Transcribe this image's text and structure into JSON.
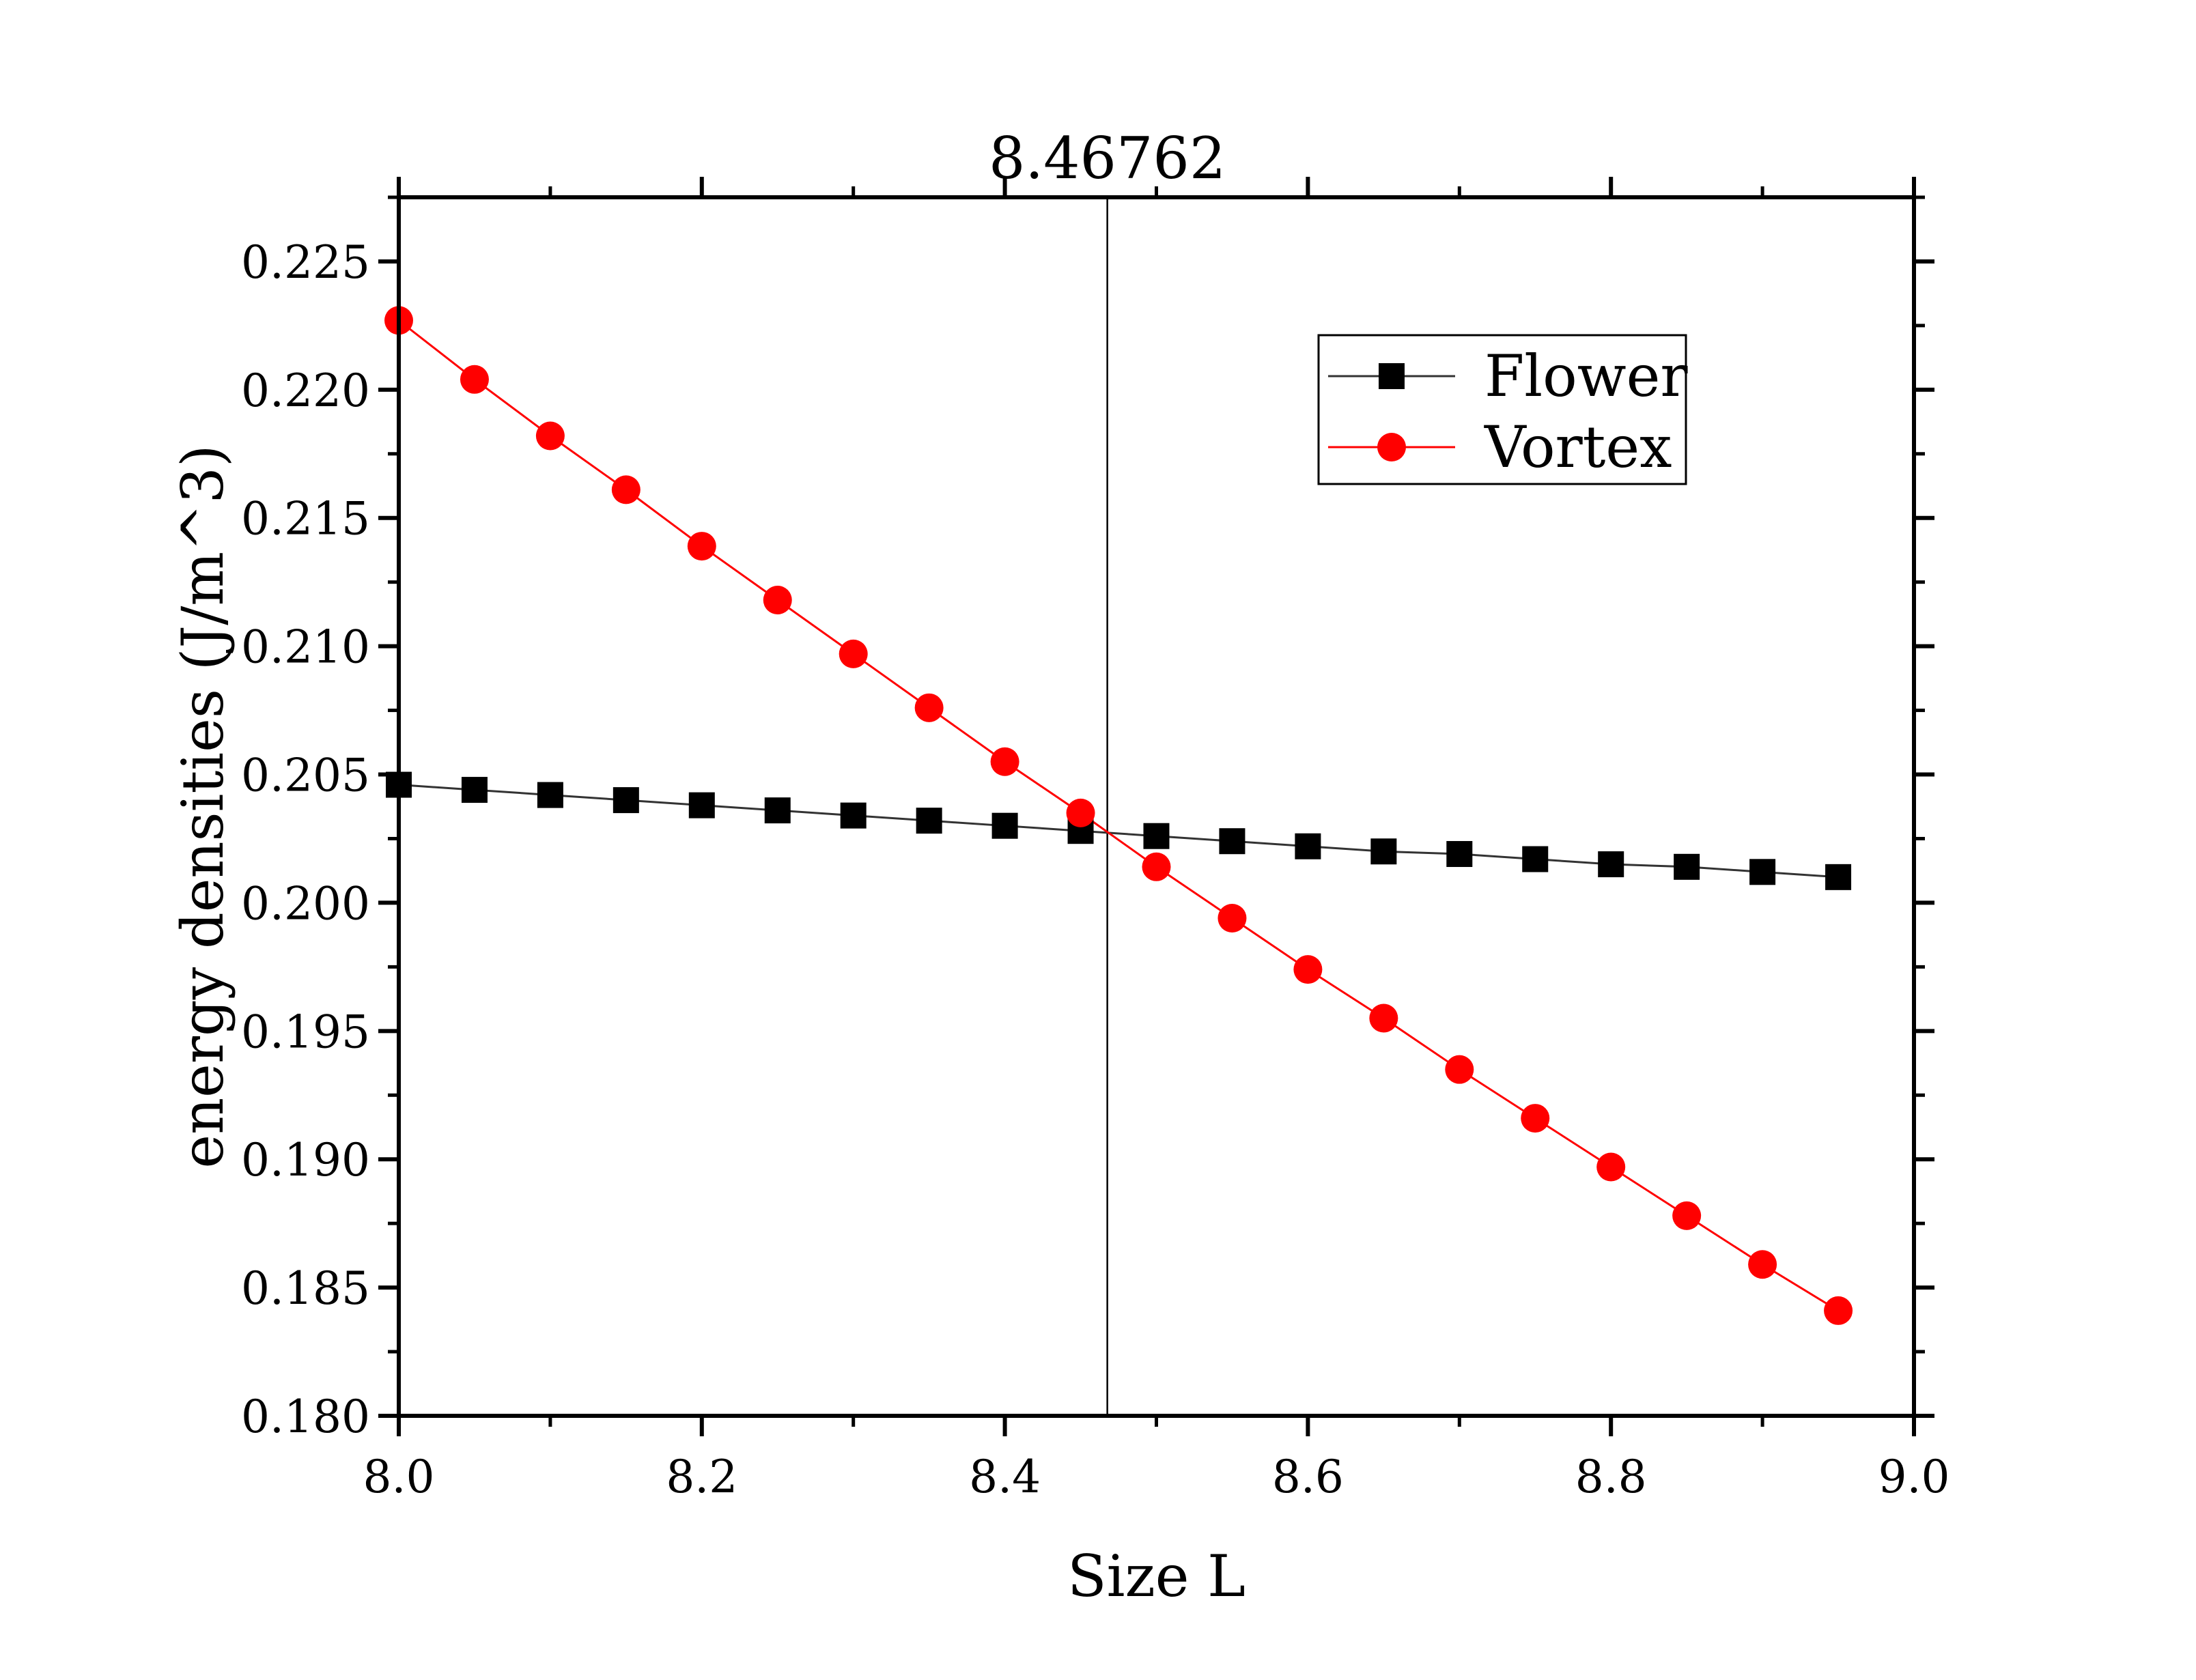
{
  "chart_data": {
    "type": "line",
    "title": "",
    "xlabel": "Size L",
    "ylabel": "energy densities (J/m^3)",
    "xlim": [
      8.0,
      9.0
    ],
    "ylim": [
      0.18,
      0.2275
    ],
    "x_ticks": [
      8.0,
      8.2,
      8.4,
      8.6,
      8.8,
      9.0
    ],
    "x_tick_labels": [
      "8.0",
      "8.2",
      "8.4",
      "8.6",
      "8.8",
      "9.0"
    ],
    "y_ticks": [
      0.18,
      0.185,
      0.19,
      0.195,
      0.2,
      0.205,
      0.21,
      0.215,
      0.22,
      0.225
    ],
    "y_tick_labels": [
      "0.180",
      "0.185",
      "0.190",
      "0.195",
      "0.200",
      "0.205",
      "0.210",
      "0.215",
      "0.220",
      "0.225"
    ],
    "grid": false,
    "legend_position": "top-right",
    "x": [
      8.0,
      8.05,
      8.1,
      8.15,
      8.2,
      8.25,
      8.3,
      8.35,
      8.4,
      8.45,
      8.5,
      8.55,
      8.6,
      8.65,
      8.7,
      8.75,
      8.8,
      8.85,
      8.9,
      8.95
    ],
    "series": [
      {
        "name": "Flower",
        "marker": "square",
        "color": "#000000",
        "line_color": "#333333",
        "values": [
          0.2046,
          0.2044,
          0.2042,
          0.204,
          0.2038,
          0.2036,
          0.2034,
          0.2032,
          0.203,
          0.2028,
          0.2026,
          0.2024,
          0.2022,
          0.202,
          0.2019,
          0.2017,
          0.2015,
          0.2014,
          0.2012,
          0.201
        ]
      },
      {
        "name": "Vortex",
        "marker": "circle",
        "color": "#ff0000",
        "line_color": "#ff0000",
        "values": [
          0.2227,
          0.2204,
          0.2182,
          0.2161,
          0.2139,
          0.2118,
          0.2097,
          0.2076,
          0.2055,
          0.2035,
          0.2014,
          0.1994,
          0.1974,
          0.1955,
          0.1935,
          0.1916,
          0.1897,
          0.1878,
          0.1859,
          0.1841
        ]
      }
    ],
    "annotations": [
      {
        "type": "vertical-line",
        "x": 8.46762,
        "label": "8.46762"
      }
    ]
  }
}
